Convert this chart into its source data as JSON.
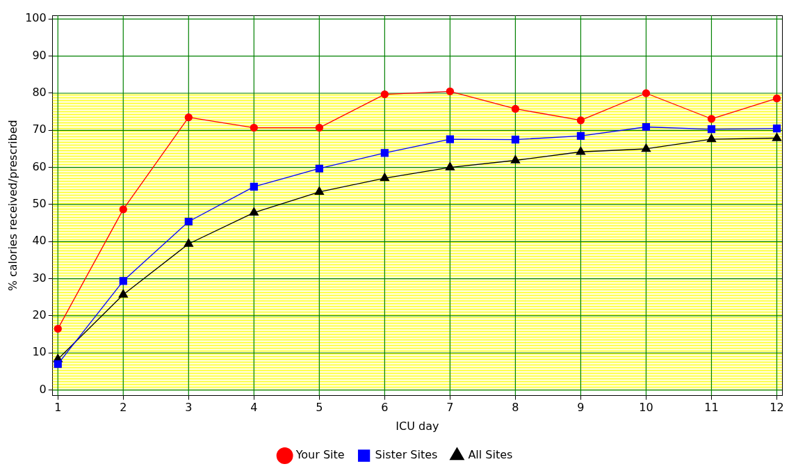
{
  "chart_data": {
    "type": "line",
    "xlabel": "ICU day",
    "ylabel": "% calories received/prescribed",
    "x": [
      1,
      2,
      3,
      4,
      5,
      6,
      7,
      8,
      9,
      10,
      11,
      12
    ],
    "xlim": [
      0.92,
      12.08
    ],
    "xticks": [
      1,
      2,
      3,
      4,
      5,
      6,
      7,
      8,
      9,
      10,
      11,
      12
    ],
    "ylim": [
      -1.5,
      101
    ],
    "yticks": [
      0,
      10,
      20,
      30,
      40,
      50,
      60,
      70,
      80,
      90,
      100
    ],
    "grid": true,
    "legend": "bottom",
    "bands": [
      {
        "axis": "y",
        "from": 0,
        "to": 80,
        "color": "#ffff00"
      }
    ],
    "series": [
      {
        "name": "Your Site",
        "color": "#ff0000",
        "marker": "circle",
        "values": [
          16.5,
          48.7,
          73.5,
          70.7,
          70.7,
          79.7,
          80.5,
          75.8,
          72.7,
          80,
          73.1,
          78.6
        ]
      },
      {
        "name": "Sister Sites",
        "color": "#0000ff",
        "marker": "square",
        "values": [
          7,
          29.4,
          45.4,
          54.8,
          59.7,
          63.9,
          67.6,
          67.5,
          68.5,
          70.9,
          70.3,
          70.5
        ]
      },
      {
        "name": "All Sites",
        "color": "#000000",
        "marker": "triangle",
        "values": [
          8.3,
          25.7,
          39.4,
          47.8,
          53.4,
          57.1,
          60,
          61.9,
          64.2,
          65,
          67.6,
          67.9
        ]
      }
    ]
  }
}
